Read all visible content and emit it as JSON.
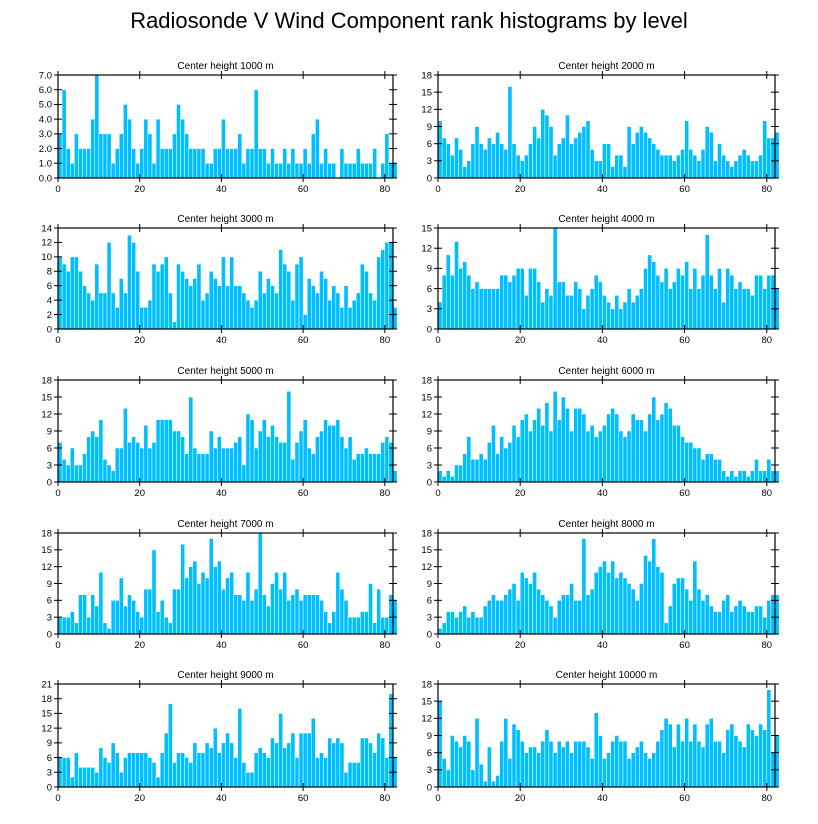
{
  "figure": {
    "title": "Radiosonde V Wind Component rank histograms by level",
    "bar_color": "#00BFFF",
    "bar_edge": "#ffffff"
  },
  "chart_data": [
    {
      "type": "bar",
      "title": "Center height 1000 m",
      "ylim": [
        0,
        7
      ],
      "yticks": [
        0,
        1,
        2,
        3,
        4,
        5,
        6,
        7
      ],
      "ytick_labels": [
        "0.0",
        "1.0",
        "2.0",
        "3.0",
        "4.0",
        "5.0",
        "6.0",
        "7.0"
      ],
      "xlim": [
        0,
        82
      ],
      "xticks": [
        0,
        20,
        40,
        60,
        80
      ],
      "xtick_labels": [
        "0",
        "20",
        "40",
        "60",
        "80"
      ],
      "values": [
        3,
        6,
        2,
        1,
        3,
        2,
        2,
        2,
        4,
        7,
        3,
        3,
        3,
        1,
        2,
        3,
        5,
        4,
        2,
        1,
        2,
        4,
        3,
        1,
        4,
        2,
        2,
        2,
        3,
        5,
        4,
        3,
        2,
        2,
        2,
        2,
        1,
        1,
        2,
        2,
        4,
        2,
        2,
        2,
        3,
        1,
        2,
        2,
        6,
        2,
        2,
        1,
        2,
        1,
        1,
        2,
        1,
        2,
        1,
        1,
        2,
        1,
        3,
        4,
        1,
        2,
        1,
        1,
        0,
        2,
        1,
        1,
        1,
        2,
        1,
        1,
        1,
        2,
        0,
        1,
        3,
        1,
        1
      ]
    },
    {
      "type": "bar",
      "title": "Center height 2000 m",
      "ylim": [
        0,
        18
      ],
      "yticks": [
        0,
        3,
        6,
        9,
        12,
        15,
        18
      ],
      "ytick_labels": [
        "0",
        "3",
        "6",
        "9",
        "12",
        "15",
        "18"
      ],
      "xlim": [
        0,
        82
      ],
      "xticks": [
        0,
        20,
        40,
        60,
        80
      ],
      "xtick_labels": [
        "0",
        "20",
        "40",
        "60",
        "80"
      ],
      "values": [
        10,
        7,
        6,
        4,
        7,
        5,
        2,
        3,
        6,
        9,
        6,
        5,
        7,
        6,
        8,
        6,
        5,
        16,
        6,
        4,
        3,
        4,
        6,
        9,
        7,
        12,
        11,
        9,
        4,
        6,
        7,
        11,
        6,
        7,
        8,
        9,
        10,
        5,
        3,
        3,
        6,
        6,
        2,
        4,
        4,
        2,
        9,
        6,
        8,
        9,
        8,
        7,
        6,
        5,
        4,
        4,
        4,
        3,
        4,
        5,
        10,
        5,
        4,
        3,
        5,
        9,
        8,
        3,
        6,
        4,
        3,
        2,
        3,
        4,
        5,
        4,
        3,
        3,
        4,
        10,
        7,
        7,
        8
      ]
    },
    {
      "type": "bar",
      "title": "Center height 3000 m",
      "ylim": [
        0,
        14
      ],
      "yticks": [
        0,
        2,
        4,
        6,
        8,
        10,
        12,
        14
      ],
      "ytick_labels": [
        "0",
        "2",
        "4",
        "6",
        "8",
        "10",
        "12",
        "14"
      ],
      "xlim": [
        0,
        82
      ],
      "xticks": [
        0,
        20,
        40,
        60,
        80
      ],
      "xtick_labels": [
        "0",
        "20",
        "40",
        "60",
        "80"
      ],
      "values": [
        10,
        9,
        8,
        10,
        10,
        8,
        6,
        5,
        4,
        9,
        5,
        5,
        12,
        5,
        3,
        7,
        5,
        13,
        12,
        8,
        3,
        3,
        4,
        9,
        8,
        9,
        10,
        5,
        1,
        9,
        8,
        7,
        6,
        7,
        9,
        4,
        5,
        8,
        7,
        6,
        10,
        6,
        10,
        6,
        6,
        5,
        4,
        3,
        4,
        8,
        5,
        7,
        6,
        5,
        11,
        9,
        8,
        4,
        9,
        10,
        2,
        7,
        6,
        5,
        8,
        7,
        4,
        6,
        5,
        3,
        6,
        3,
        4,
        5,
        9,
        8,
        5,
        4,
        10,
        11,
        12,
        12,
        3
      ]
    },
    {
      "type": "bar",
      "title": "Center height 4000 m",
      "ylim": [
        0,
        15
      ],
      "yticks": [
        0,
        3,
        6,
        9,
        12,
        15
      ],
      "ytick_labels": [
        "0",
        "3",
        "6",
        "9",
        "12",
        "15"
      ],
      "xlim": [
        0,
        82
      ],
      "xticks": [
        0,
        20,
        40,
        60,
        80
      ],
      "xtick_labels": [
        "0",
        "20",
        "40",
        "60",
        "80"
      ],
      "values": [
        4,
        8,
        11,
        8,
        13,
        9,
        10,
        8,
        6,
        7,
        6,
        6,
        6,
        6,
        6,
        8,
        8,
        7,
        8,
        9,
        9,
        5,
        9,
        9,
        7,
        4,
        6,
        5,
        15,
        7,
        7,
        5,
        5,
        7,
        6,
        3,
        5,
        6,
        8,
        7,
        5,
        4,
        3,
        5,
        3,
        4,
        6,
        4,
        5,
        6,
        9,
        11,
        10,
        8,
        7,
        9,
        6,
        7,
        9,
        8,
        10,
        6,
        9,
        6,
        8,
        14,
        8,
        6,
        9,
        4,
        9,
        8,
        6,
        7,
        6,
        6,
        5,
        8,
        8,
        6,
        8,
        8,
        6
      ]
    },
    {
      "type": "bar",
      "title": "Center height 5000 m",
      "ylim": [
        0,
        18
      ],
      "yticks": [
        0,
        3,
        6,
        9,
        12,
        15,
        18
      ],
      "ytick_labels": [
        "0",
        "3",
        "6",
        "9",
        "12",
        "15",
        "18"
      ],
      "xlim": [
        0,
        82
      ],
      "xticks": [
        0,
        20,
        40,
        60,
        80
      ],
      "xtick_labels": [
        "0",
        "20",
        "40",
        "60",
        "80"
      ],
      "values": [
        7,
        4,
        3,
        6,
        3,
        3,
        5,
        8,
        9,
        8,
        11,
        4,
        3,
        2,
        6,
        6,
        13,
        7,
        8,
        7,
        6,
        10,
        6,
        7,
        11,
        11,
        11,
        11,
        9,
        9,
        8,
        5,
        15,
        6,
        5,
        5,
        5,
        9,
        6,
        8,
        6,
        6,
        6,
        7,
        8,
        3,
        12,
        11,
        6,
        9,
        11,
        8,
        10,
        8,
        7,
        7,
        16,
        4,
        7,
        9,
        11,
        6,
        5,
        8,
        9,
        11,
        10,
        10,
        11,
        8,
        6,
        8,
        4,
        5,
        5,
        6,
        5,
        5,
        5,
        7,
        8,
        7,
        2
      ]
    },
    {
      "type": "bar",
      "title": "Center height 6000 m",
      "ylim": [
        0,
        18
      ],
      "yticks": [
        0,
        3,
        6,
        9,
        12,
        15,
        18
      ],
      "ytick_labels": [
        "0",
        "3",
        "6",
        "9",
        "12",
        "15",
        "18"
      ],
      "xlim": [
        0,
        82
      ],
      "xticks": [
        0,
        20,
        40,
        60,
        80
      ],
      "xtick_labels": [
        "0",
        "20",
        "40",
        "60",
        "80"
      ],
      "values": [
        2,
        1,
        2,
        1,
        3,
        3,
        5,
        8,
        4,
        4,
        5,
        4,
        7,
        10,
        5,
        8,
        6,
        7,
        10,
        8,
        11,
        12,
        9,
        11,
        13,
        10,
        14,
        9,
        16,
        11,
        15,
        13,
        9,
        13,
        13,
        12,
        9,
        10,
        8,
        9,
        10,
        12,
        13,
        12,
        9,
        8,
        9,
        12,
        11,
        11,
        9,
        12,
        15,
        11,
        12,
        14,
        13,
        10,
        10,
        8,
        7,
        7,
        6,
        6,
        4,
        5,
        5,
        4,
        4,
        2,
        1,
        2,
        1,
        2,
        2,
        1,
        2,
        4,
        2,
        2,
        4,
        2,
        2
      ]
    },
    {
      "type": "bar",
      "title": "Center height 7000 m",
      "ylim": [
        0,
        18
      ],
      "yticks": [
        0,
        3,
        6,
        9,
        12,
        15,
        18
      ],
      "ytick_labels": [
        "0",
        "3",
        "6",
        "9",
        "12",
        "15",
        "18"
      ],
      "xlim": [
        0,
        82
      ],
      "xticks": [
        0,
        20,
        40,
        60,
        80
      ],
      "xtick_labels": [
        "0",
        "20",
        "40",
        "60",
        "80"
      ],
      "values": [
        3,
        3,
        3,
        4,
        2,
        7,
        7,
        3,
        7,
        5,
        11,
        2,
        1,
        6,
        6,
        10,
        5,
        7,
        6,
        4,
        3,
        8,
        8,
        15,
        4,
        6,
        3,
        2,
        8,
        8,
        16,
        10,
        12,
        13,
        9,
        11,
        10,
        17,
        12,
        13,
        8,
        10,
        11,
        7,
        7,
        6,
        11,
        6,
        8,
        18,
        7,
        5,
        9,
        11,
        8,
        11,
        6,
        7,
        8,
        6,
        7,
        7,
        7,
        7,
        6,
        4,
        2,
        4,
        11,
        8,
        6,
        3,
        3,
        3,
        4,
        4,
        9,
        2,
        8,
        3,
        3,
        7,
        6
      ]
    },
    {
      "type": "bar",
      "title": "Center height 8000 m",
      "ylim": [
        0,
        18
      ],
      "yticks": [
        0,
        3,
        6,
        9,
        12,
        15,
        18
      ],
      "ytick_labels": [
        "0",
        "3",
        "6",
        "9",
        "12",
        "15",
        "18"
      ],
      "xlim": [
        0,
        82
      ],
      "xticks": [
        0,
        20,
        40,
        60,
        80
      ],
      "xtick_labels": [
        "0",
        "20",
        "40",
        "60",
        "80"
      ],
      "values": [
        1,
        2,
        4,
        4,
        3,
        4,
        5,
        3,
        4,
        3,
        3,
        5,
        6,
        7,
        6,
        6,
        7,
        8,
        9,
        6,
        11,
        10,
        9,
        11,
        8,
        7,
        6,
        5,
        3,
        6,
        7,
        7,
        9,
        6,
        6,
        17,
        7,
        8,
        11,
        12,
        13,
        11,
        13,
        10,
        11,
        10,
        9,
        8,
        6,
        9,
        14,
        13,
        17,
        12,
        11,
        2,
        5,
        9,
        10,
        10,
        8,
        6,
        13,
        8,
        6,
        7,
        5,
        4,
        4,
        6,
        7,
        4,
        5,
        6,
        5,
        4,
        4,
        5,
        5,
        3,
        6,
        7,
        7
      ]
    },
    {
      "type": "bar",
      "title": "Center height 9000 m",
      "ylim": [
        0,
        21
      ],
      "yticks": [
        0,
        3,
        6,
        9,
        12,
        15,
        18,
        21
      ],
      "ytick_labels": [
        "0",
        "3",
        "6",
        "9",
        "12",
        "15",
        "18",
        "21"
      ],
      "xlim": [
        0,
        82
      ],
      "xticks": [
        0,
        20,
        40,
        60,
        80
      ],
      "xtick_labels": [
        "0",
        "20",
        "40",
        "60",
        "80"
      ],
      "values": [
        6,
        6,
        6,
        2,
        7,
        4,
        4,
        4,
        4,
        3,
        8,
        6,
        5,
        9,
        7,
        3,
        6,
        7,
        7,
        7,
        7,
        7,
        6,
        5,
        2,
        7,
        11,
        17,
        5,
        7,
        7,
        6,
        5,
        9,
        7,
        7,
        9,
        8,
        12,
        7,
        9,
        11,
        9,
        6,
        16,
        5,
        3,
        3,
        7,
        8,
        7,
        6,
        10,
        9,
        15,
        8,
        9,
        11,
        6,
        11,
        11,
        11,
        14,
        6,
        7,
        6,
        10,
        9,
        10,
        9,
        3,
        5,
        5,
        5,
        10,
        10,
        9,
        7,
        11,
        10,
        6,
        19,
        6
      ]
    },
    {
      "type": "bar",
      "title": "Center height 10000 m",
      "ylim": [
        0,
        18
      ],
      "yticks": [
        0,
        3,
        6,
        9,
        12,
        15,
        18
      ],
      "ytick_labels": [
        "0",
        "3",
        "6",
        "9",
        "12",
        "15",
        "18"
      ],
      "xlim": [
        0,
        82
      ],
      "xticks": [
        0,
        20,
        40,
        60,
        80
      ],
      "xtick_labels": [
        "0",
        "20",
        "40",
        "60",
        "80"
      ],
      "values": [
        15,
        5,
        3,
        9,
        8,
        7,
        9,
        8,
        3,
        12,
        4,
        1,
        7,
        1,
        2,
        8,
        12,
        5,
        11,
        10,
        8,
        6,
        7,
        7,
        6,
        8,
        10,
        8,
        6,
        8,
        7,
        8,
        6,
        8,
        8,
        8,
        7,
        5,
        13,
        9,
        5,
        6,
        8,
        9,
        8,
        8,
        5,
        6,
        7,
        8,
        6,
        5,
        6,
        8,
        10,
        12,
        11,
        7,
        11,
        8,
        12,
        8,
        11,
        8,
        7,
        11,
        12,
        8,
        8,
        6,
        10,
        11,
        9,
        8,
        7,
        11,
        10,
        9,
        11,
        10,
        17,
        6,
        9
      ]
    }
  ]
}
